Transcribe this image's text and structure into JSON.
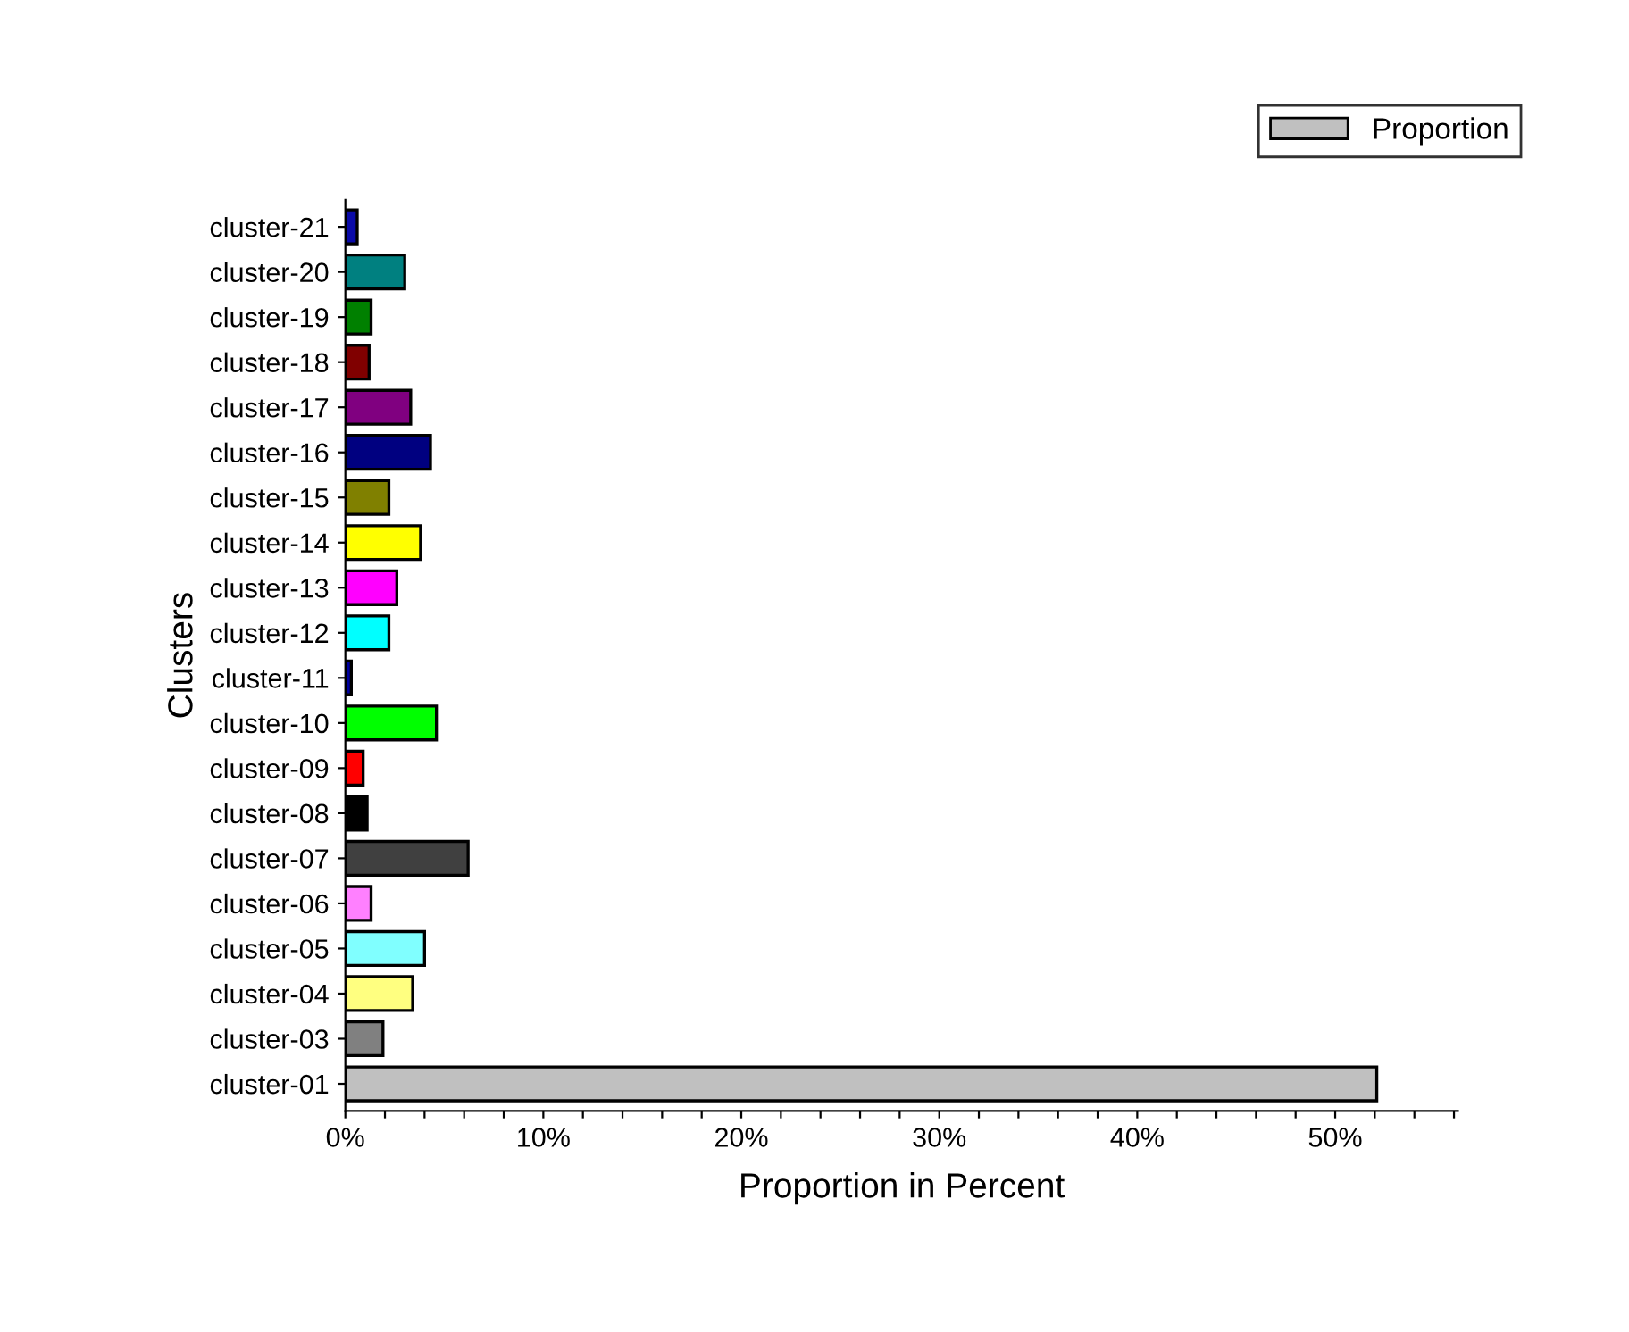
{
  "chart_data": {
    "type": "bar",
    "orientation": "horizontal",
    "xlabel": "Proportion in Percent",
    "ylabel": "Clusters",
    "categories": [
      "cluster-21",
      "cluster-20",
      "cluster-19",
      "cluster-18",
      "cluster-17",
      "cluster-16",
      "cluster-15",
      "cluster-14",
      "cluster-13",
      "cluster-12",
      "cluster-11",
      "cluster-10",
      "cluster-09",
      "cluster-08",
      "cluster-07",
      "cluster-06",
      "cluster-05",
      "cluster-04",
      "cluster-03",
      "cluster-01"
    ],
    "series": [
      {
        "name": "Proportion",
        "color": "#c0c0c0",
        "values": [
          0.6,
          3.0,
          1.3,
          1.2,
          3.3,
          4.3,
          2.2,
          3.8,
          2.6,
          2.2,
          0.3,
          4.6,
          0.9,
          1.1,
          6.2,
          1.3,
          4.0,
          3.4,
          1.9,
          52.1
        ],
        "colors": [
          "#0a0aa8",
          "#008080",
          "#008000",
          "#800000",
          "#800080",
          "#000080",
          "#808000",
          "#ffff00",
          "#ff00ff",
          "#00ffff",
          "#0000a0",
          "#00ff00",
          "#ff0000",
          "#000000",
          "#404040",
          "#ff80ff",
          "#80ffff",
          "#ffff80",
          "#808080",
          "#c0c0c0"
        ]
      }
    ],
    "xlim": [
      0,
      56.2
    ],
    "xticks": [
      {
        "value": 0,
        "label": "0%"
      },
      {
        "value": 2,
        "label": null
      },
      {
        "value": 4,
        "label": null
      },
      {
        "value": 6,
        "label": null
      },
      {
        "value": 8,
        "label": null
      },
      {
        "value": 10,
        "label": "10%"
      },
      {
        "value": 12,
        "label": null
      },
      {
        "value": 14,
        "label": null
      },
      {
        "value": 16,
        "label": null
      },
      {
        "value": 18,
        "label": null
      },
      {
        "value": 20,
        "label": "20%"
      },
      {
        "value": 22,
        "label": null
      },
      {
        "value": 24,
        "label": null
      },
      {
        "value": 26,
        "label": null
      },
      {
        "value": 28,
        "label": null
      },
      {
        "value": 30,
        "label": "30%"
      },
      {
        "value": 32,
        "label": null
      },
      {
        "value": 34,
        "label": null
      },
      {
        "value": 36,
        "label": null
      },
      {
        "value": 38,
        "label": null
      },
      {
        "value": 40,
        "label": "40%"
      },
      {
        "value": 42,
        "label": null
      },
      {
        "value": 44,
        "label": null
      },
      {
        "value": 46,
        "label": null
      },
      {
        "value": 48,
        "label": null
      },
      {
        "value": 50,
        "label": "50%"
      },
      {
        "value": 52,
        "label": null
      },
      {
        "value": 54,
        "label": null
      },
      {
        "value": 56,
        "label": null
      }
    ],
    "grid": false,
    "legend": "top right"
  }
}
